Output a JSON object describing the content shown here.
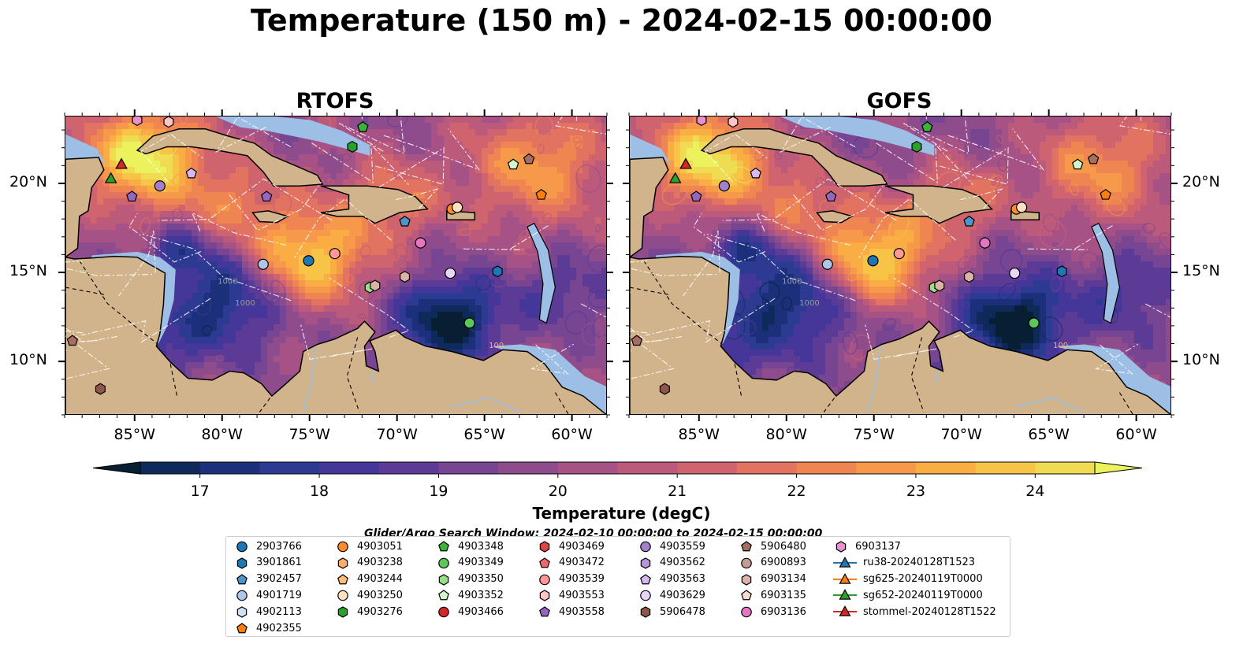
{
  "title": "Temperature (150 m) - 2024-02-15 00:00:00",
  "panels": [
    {
      "name": "rtofs",
      "title": "RTOFS"
    },
    {
      "name": "gofs",
      "title": "GOFS"
    }
  ],
  "chart_data": {
    "type": "heatmap",
    "title": "Temperature (150 m) - 2024-02-15 00:00:00",
    "subplots": [
      "RTOFS",
      "GOFS"
    ],
    "x_ticks": [
      "85°W",
      "80°W",
      "75°W",
      "70°W",
      "65°W",
      "60°W"
    ],
    "x_values": [
      -85,
      -80,
      -75,
      -70,
      -65,
      -60
    ],
    "y_ticks": [
      "20°N",
      "15°N",
      "10°N"
    ],
    "y_values": [
      20,
      15,
      10
    ],
    "xlim": [
      -89,
      -58
    ],
    "ylim": [
      7,
      23.8
    ],
    "colorbar": {
      "label": "Temperature (degC)",
      "ticks": [
        "17",
        "18",
        "19",
        "20",
        "21",
        "22",
        "23",
        "24"
      ],
      "tick_values": [
        17,
        18,
        19,
        20,
        21,
        22,
        23,
        24
      ],
      "range": [
        16.5,
        24.5
      ],
      "extend": "both",
      "colors": [
        "#081f33",
        "#0e2a5a",
        "#1b2f7a",
        "#2d3a92",
        "#45379a",
        "#5c3b97",
        "#784593",
        "#8f4c8c",
        "#a65286",
        "#bc5a7b",
        "#d0646e",
        "#e27361",
        "#ef8652",
        "#f6994a",
        "#f9ad42",
        "#f7c447",
        "#f0dc52",
        "#ebf25b"
      ]
    },
    "contour_labels": [
      "1000",
      "1000",
      "100"
    ]
  },
  "colors": {
    "land": "#d2b48c",
    "shelf": "#9dbfe6"
  },
  "search_window": "Glider/Argo Search Window: 2024-02-10 00:00:00 to 2024-02-15 00:00:00",
  "legend": [
    {
      "label": "2903766",
      "shape": "circle",
      "color": "#1f77b4"
    },
    {
      "label": "3901861",
      "shape": "hexagon",
      "color": "#1f77b4"
    },
    {
      "label": "3902457",
      "shape": "pentagon",
      "color": "#4e96c9"
    },
    {
      "label": "4901719",
      "shape": "circle",
      "color": "#aec7e8"
    },
    {
      "label": "4902113",
      "shape": "hexagon",
      "color": "#cfe2f3"
    },
    {
      "label": "4902355",
      "shape": "pentagon",
      "color": "#ff7f0e"
    },
    {
      "label": "4903051",
      "shape": "circle",
      "color": "#ff8c2a"
    },
    {
      "label": "4903238",
      "shape": "hexagon",
      "color": "#ffae6b"
    },
    {
      "label": "4903244",
      "shape": "pentagon",
      "color": "#ffbb78"
    },
    {
      "label": "4903250",
      "shape": "circle",
      "color": "#ffe0c0"
    },
    {
      "label": "4903276",
      "shape": "hexagon",
      "color": "#2ca02c"
    },
    {
      "label": "4903348",
      "shape": "pentagon",
      "color": "#3cb43c"
    },
    {
      "label": "4903349",
      "shape": "circle",
      "color": "#5cc85c"
    },
    {
      "label": "4903350",
      "shape": "hexagon",
      "color": "#98df8a"
    },
    {
      "label": "4903352",
      "shape": "pentagon",
      "color": "#d4f5c8"
    },
    {
      "label": "4903466",
      "shape": "circle",
      "color": "#d62728"
    },
    {
      "label": "4903469",
      "shape": "hexagon",
      "color": "#e04545"
    },
    {
      "label": "4903472",
      "shape": "pentagon",
      "color": "#ec6a6a"
    },
    {
      "label": "4903539",
      "shape": "circle",
      "color": "#ff9896"
    },
    {
      "label": "4903553",
      "shape": "hexagon",
      "color": "#ffc4c3"
    },
    {
      "label": "4903558",
      "shape": "pentagon",
      "color": "#9467bd"
    },
    {
      "label": "4903559",
      "shape": "circle",
      "color": "#a47fcc"
    },
    {
      "label": "4903562",
      "shape": "hexagon",
      "color": "#b894dc"
    },
    {
      "label": "4903563",
      "shape": "pentagon",
      "color": "#d5b9f0"
    },
    {
      "label": "4903629",
      "shape": "circle",
      "color": "#e8d6f7"
    },
    {
      "label": "5906478",
      "shape": "hexagon",
      "color": "#8c564b"
    },
    {
      "label": "5906480",
      "shape": "pentagon",
      "color": "#a66e60"
    },
    {
      "label": "6900893",
      "shape": "circle",
      "color": "#c49c94"
    },
    {
      "label": "6903134",
      "shape": "hexagon",
      "color": "#dbb3a8"
    },
    {
      "label": "6903135",
      "shape": "pentagon",
      "color": "#f3dad2"
    },
    {
      "label": "6903136",
      "shape": "circle",
      "color": "#e377c2"
    },
    {
      "label": "6903137",
      "shape": "hexagon",
      "color": "#eb90cf"
    },
    {
      "label": "ru38-20240128T1523",
      "shape": "triangle",
      "color": "#1f77b4"
    },
    {
      "label": "sg625-20240119T0000",
      "shape": "triangle",
      "color": "#ff7f0e"
    },
    {
      "label": "sg652-20240119T0000",
      "shape": "triangle",
      "color": "#2ca02c"
    },
    {
      "label": "stommel-20240128T1522",
      "shape": "triangle",
      "color": "#d62728"
    }
  ],
  "markers": [
    {
      "label": "6903137",
      "lon": -84.9,
      "lat": 23.6
    },
    {
      "label": "4903553",
      "lon": -83.1,
      "lat": 23.5
    },
    {
      "label": "stommel-20240128T1522",
      "lon": -85.8,
      "lat": 21.1
    },
    {
      "label": "sg652-20240119T0000",
      "lon": -86.4,
      "lat": 20.3
    },
    {
      "label": "4903558",
      "lon": -85.2,
      "lat": 19.3
    },
    {
      "label": "4903559",
      "lon": -83.6,
      "lat": 19.9
    },
    {
      "label": "4903563",
      "lon": -81.8,
      "lat": 20.6
    },
    {
      "label": "4903348",
      "lon": -72.0,
      "lat": 23.2
    },
    {
      "label": "4903276",
      "lon": -72.6,
      "lat": 22.1
    },
    {
      "label": "4903558",
      "lon": -77.5,
      "lat": 19.3
    },
    {
      "label": "4903352",
      "lon": -63.4,
      "lat": 21.1
    },
    {
      "label": "5906480",
      "lon": -62.5,
      "lat": 21.4
    },
    {
      "label": "4902355",
      "lon": -61.8,
      "lat": 19.4
    },
    {
      "label": "4903051",
      "lon": -66.9,
      "lat": 18.6
    },
    {
      "label": "4903250",
      "lon": -66.6,
      "lat": 18.7
    },
    {
      "label": "3902457",
      "lon": -69.6,
      "lat": 17.9
    },
    {
      "label": "6903136",
      "lon": -68.7,
      "lat": 16.7
    },
    {
      "label": "4903539",
      "lon": -73.6,
      "lat": 16.1
    },
    {
      "label": "2903766",
      "lon": -75.1,
      "lat": 15.7
    },
    {
      "label": "4901719",
      "lon": -77.7,
      "lat": 15.5
    },
    {
      "label": "4903629",
      "lon": -67.0,
      "lat": 15.0
    },
    {
      "label": "3901861",
      "lon": -64.3,
      "lat": 15.1
    },
    {
      "label": "6903134",
      "lon": -69.6,
      "lat": 14.8
    },
    {
      "label": "4903350",
      "lon": -71.6,
      "lat": 14.2
    },
    {
      "label": "6903134",
      "lon": -71.3,
      "lat": 14.3
    },
    {
      "label": "4903349",
      "lon": -65.9,
      "lat": 12.2
    },
    {
      "label": "5906480",
      "lon": -88.6,
      "lat": 11.2
    },
    {
      "label": "5906478",
      "lon": -87.0,
      "lat": 8.5
    }
  ]
}
